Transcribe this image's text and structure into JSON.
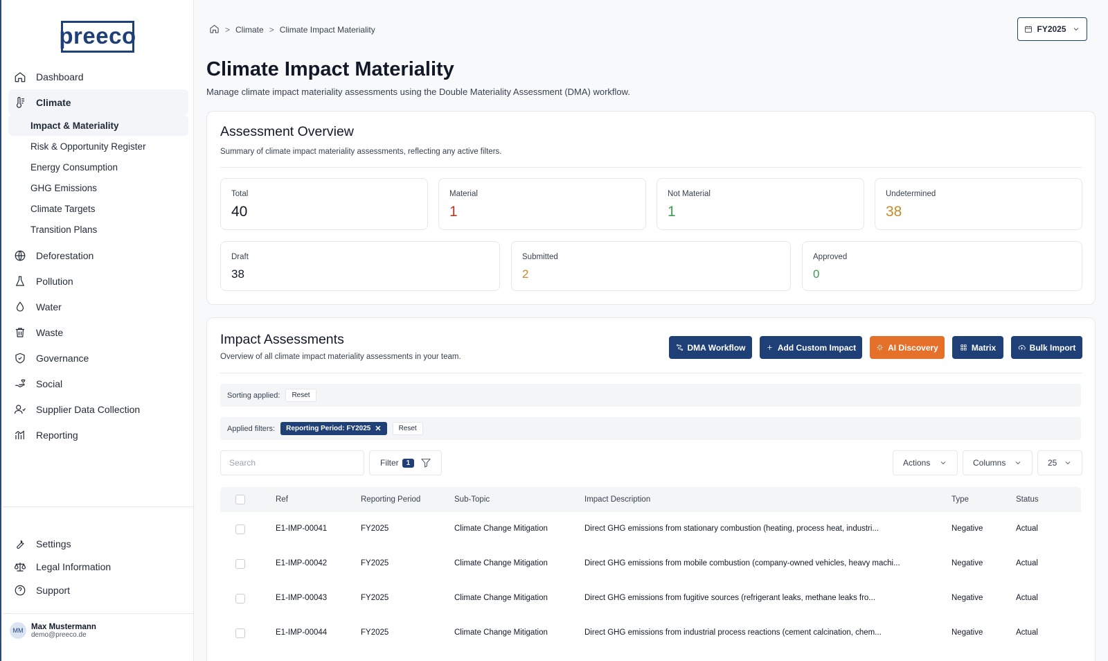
{
  "brand": {
    "logo_text": "preeco"
  },
  "sidebar": {
    "items": [
      {
        "label": "Dashboard",
        "icon": "home-icon"
      },
      {
        "label": "Climate",
        "icon": "thermometer-icon",
        "active": true,
        "children": [
          {
            "label": "Impact & Materiality",
            "active": true
          },
          {
            "label": "Risk & Opportunity Register"
          },
          {
            "label": "Energy Consumption"
          },
          {
            "label": "GHG Emissions"
          },
          {
            "label": "Climate Targets"
          },
          {
            "label": "Transition Plans"
          }
        ]
      },
      {
        "label": "Deforestation",
        "icon": "globe-icon"
      },
      {
        "label": "Pollution",
        "icon": "flask-icon"
      },
      {
        "label": "Water",
        "icon": "droplet-icon"
      },
      {
        "label": "Waste",
        "icon": "trash-icon"
      },
      {
        "label": "Governance",
        "icon": "shield-icon"
      },
      {
        "label": "Social",
        "icon": "hand-heart-icon"
      },
      {
        "label": "Supplier Data Collection",
        "icon": "users-icon"
      },
      {
        "label": "Reporting",
        "icon": "chart-icon"
      }
    ],
    "bottom": [
      {
        "label": "Settings",
        "icon": "wrench-icon"
      },
      {
        "label": "Legal Information",
        "icon": "scale-icon"
      },
      {
        "label": "Support",
        "icon": "help-circle-icon"
      }
    ],
    "user": {
      "initials": "MM",
      "name": "Max Mustermann",
      "email": "demo@preeco.de"
    }
  },
  "breadcrumb": {
    "items": [
      "Climate",
      "Climate Impact Materiality"
    ]
  },
  "period_selector": {
    "label": "FY2025"
  },
  "page": {
    "title": "Climate Impact Materiality",
    "subtitle": "Manage climate impact materiality assessments using the Double Materiality Assessment (DMA) workflow."
  },
  "overview": {
    "title": "Assessment Overview",
    "description": "Summary of climate impact materiality assessments, reflecting any active filters.",
    "stats_row1": [
      {
        "label": "Total",
        "value": "40"
      },
      {
        "label": "Material",
        "value": "1",
        "color": "#b23a2a"
      },
      {
        "label": "Not Material",
        "value": "1",
        "color": "#3e9b4f"
      },
      {
        "label": "Undetermined",
        "value": "38",
        "color": "#c58a2a"
      }
    ],
    "stats_row2": [
      {
        "label": "Draft",
        "value": "38"
      },
      {
        "label": "Submitted",
        "value": "2",
        "color": "#c58a2a"
      },
      {
        "label": "Approved",
        "value": "0",
        "color": "#3e9b4f"
      }
    ]
  },
  "assessments": {
    "title": "Impact Assessments",
    "description": "Overview of all climate impact materiality assessments in your team.",
    "buttons": {
      "dma_workflow": "DMA Workflow",
      "add_custom": "Add Custom Impact",
      "ai_discovery": "AI Discovery",
      "matrix": "Matrix",
      "bulk_import": "Bulk Import"
    },
    "sorting_label": "Sorting applied:",
    "reset_label": "Reset",
    "filters_label": "Applied filters:",
    "filter_chip": "Reporting Period: FY2025",
    "search_placeholder": "Search",
    "filter_label": "Filter",
    "filter_count": "1",
    "actions_label": "Actions",
    "columns_label": "Columns",
    "page_size": "25",
    "table": {
      "headers": [
        "Ref",
        "Reporting Period",
        "Sub-Topic",
        "Impact Description",
        "Type",
        "Status"
      ],
      "rows": [
        {
          "ref": "E1-IMP-00041",
          "period": "FY2025",
          "subtopic": "Climate Change Mitigation",
          "description": "Direct GHG emissions from stationary combustion (heating, process heat, industri...",
          "type": "Negative",
          "status": "Actual"
        },
        {
          "ref": "E1-IMP-00042",
          "period": "FY2025",
          "subtopic": "Climate Change Mitigation",
          "description": "Direct GHG emissions from mobile combustion (company-owned vehicles, heavy machi...",
          "type": "Negative",
          "status": "Actual"
        },
        {
          "ref": "E1-IMP-00043",
          "period": "FY2025",
          "subtopic": "Climate Change Mitigation",
          "description": "Direct GHG emissions from fugitive sources (refrigerant leaks, methane leaks fro...",
          "type": "Negative",
          "status": "Actual"
        },
        {
          "ref": "E1-IMP-00044",
          "period": "FY2025",
          "subtopic": "Climate Change Mitigation",
          "description": "Direct GHG emissions from industrial process reactions (cement calcination, chem...",
          "type": "Negative",
          "status": "Actual"
        }
      ]
    }
  }
}
